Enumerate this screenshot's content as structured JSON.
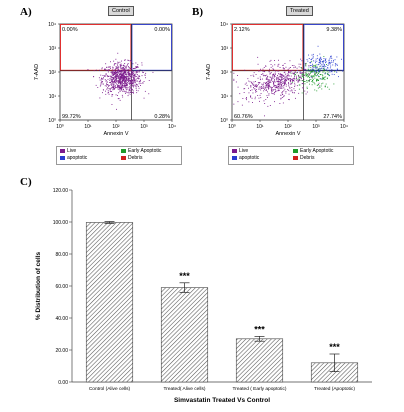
{
  "panels": {
    "a": {
      "letter": "A)",
      "tag": "Control",
      "ylabel": "7-AAD",
      "xlabel": "Annexin V",
      "quadrants": {
        "ul": "0.00%",
        "ur": "0.00%",
        "ll": "99.72%",
        "lr": "0.28%"
      },
      "legend": {
        "live": "Live",
        "early": "Early Apoptotic",
        "apoptotic": "apoptotic",
        "debris": "Debris"
      }
    },
    "b": {
      "letter": "B)",
      "tag": "Treated",
      "ylabel": "7-AAD",
      "xlabel": "Annexin V",
      "quadrants": {
        "ul": "2.12%",
        "ur": "9.38%",
        "ll": "60.76%",
        "lr": "27.74%"
      },
      "legend": {
        "live": "Live",
        "early": "Early Apoptotic",
        "apoptotic": "apoptotic",
        "debris": "Debris"
      }
    },
    "c": {
      "letter": "C)"
    }
  },
  "flow_ticks": {
    "y": [
      "10⁴",
      "10³",
      "10²",
      "10¹",
      "10⁰"
    ],
    "x": [
      "10⁰",
      "10¹",
      "10²",
      "10³",
      "10⁴"
    ]
  },
  "colors": {
    "live": "#7b1a8c",
    "early": "#1f9a2c",
    "apoptotic": "#2a3dd0",
    "debris": "#d02020",
    "gate_red": "#e03030",
    "gate_blue": "#3a46c8"
  },
  "chart_data": [
    {
      "type": "scatter",
      "title": "Control",
      "xlabel": "Annexin V",
      "ylabel": "7-AAD",
      "x_scale": "log",
      "y_scale": "log",
      "xlim": [
        1,
        10000
      ],
      "ylim": [
        1,
        10000
      ],
      "quadrant_percentages": {
        "upper_left": 0.0,
        "upper_right": 0.0,
        "lower_left": 99.72,
        "lower_right": 0.28
      },
      "legend": [
        "Live",
        "Early Apoptotic",
        "apoptotic",
        "Debris"
      ]
    },
    {
      "type": "scatter",
      "title": "Treated",
      "xlabel": "Annexin V",
      "ylabel": "7-AAD",
      "x_scale": "log",
      "y_scale": "log",
      "xlim": [
        1,
        10000
      ],
      "ylim": [
        1,
        10000
      ],
      "quadrant_percentages": {
        "upper_left": 2.12,
        "upper_right": 9.38,
        "lower_left": 60.76,
        "lower_right": 27.74
      },
      "legend": [
        "Live",
        "Early Apoptotic",
        "apoptotic",
        "Debris"
      ]
    },
    {
      "type": "bar",
      "title": "",
      "xlabel": "Simvastatin Treated Vs Control",
      "ylabel": "% Distribution of cells",
      "ylim": [
        0,
        120
      ],
      "yticks": [
        "0.00",
        "20.00",
        "40.00",
        "60.00",
        "80.00",
        "100.00",
        "120.00"
      ],
      "categories": [
        "Control (Alive cells)",
        "Treated( Alive cells)",
        "Treated ( Early apoptotic)",
        "Treated (Apoptotic)"
      ],
      "values": [
        99.7,
        59,
        27,
        12
      ],
      "errors": [
        0.6,
        3,
        1.5,
        5.5
      ],
      "annotations": [
        "",
        "***",
        "***",
        "***"
      ]
    }
  ]
}
